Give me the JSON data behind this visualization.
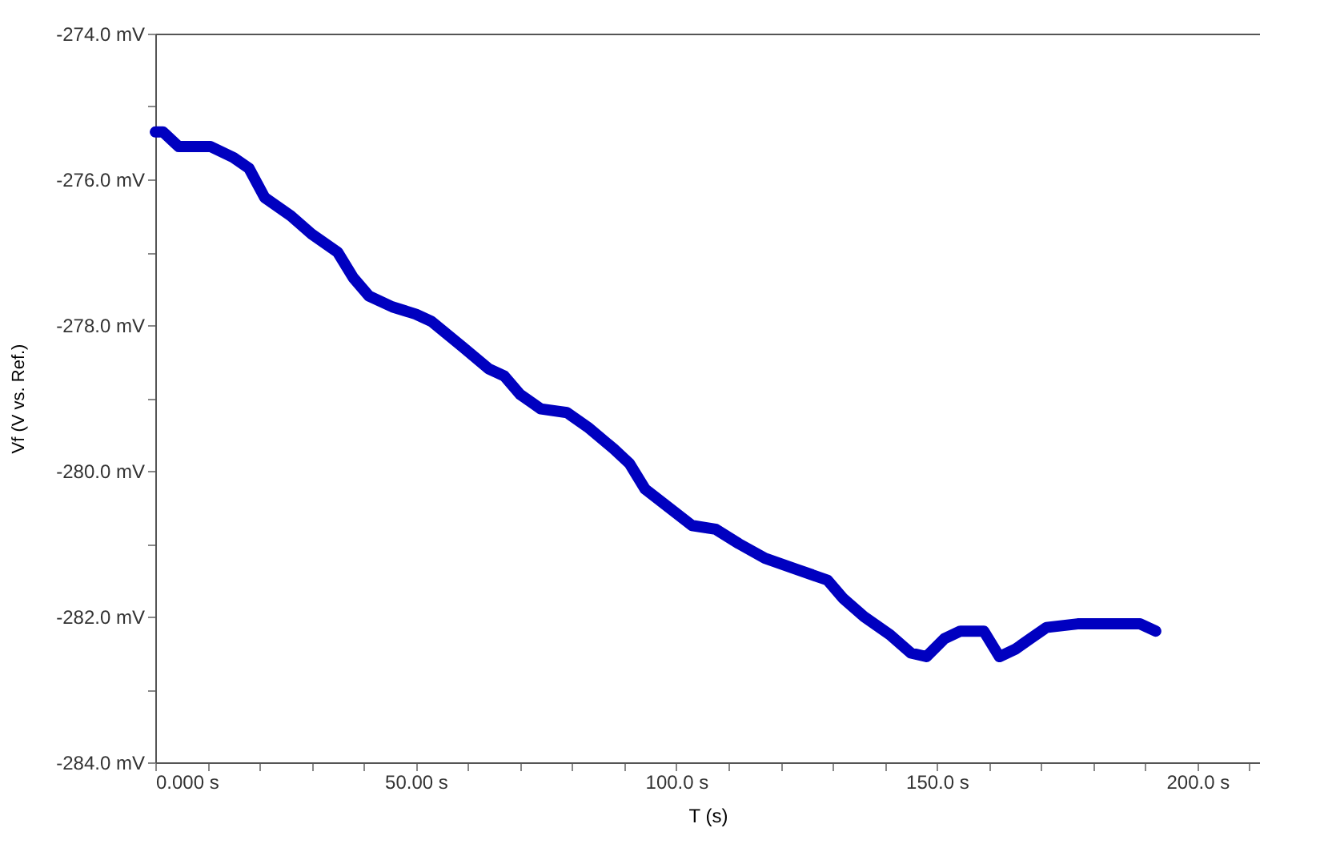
{
  "chart_data": {
    "type": "line",
    "xlabel": "T (s)",
    "ylabel": "Vf (V vs. Ref.)",
    "x": [
      0,
      1.5,
      4.5,
      7.6,
      10.6,
      15,
      18,
      21,
      26,
      30,
      35,
      38,
      41,
      45.5,
      50,
      53,
      59,
      64,
      67,
      70,
      74,
      79,
      83,
      88,
      91,
      94,
      98.5,
      103,
      107.5,
      112,
      117,
      123,
      129,
      132,
      136,
      141,
      145,
      148,
      151.5,
      154.5,
      159,
      162,
      165,
      168,
      171,
      177,
      183,
      189,
      192
    ],
    "series": [
      {
        "color": "#0000c0",
        "values": [
          -275.35,
          -275.35,
          -275.55,
          -275.55,
          -275.55,
          -275.7,
          -275.85,
          -276.25,
          -276.5,
          -276.75,
          -277.0,
          -277.35,
          -277.6,
          -277.75,
          -277.85,
          -277.95,
          -278.3,
          -278.6,
          -278.7,
          -278.95,
          -279.15,
          -279.2,
          -279.4,
          -279.7,
          -279.9,
          -280.25,
          -280.5,
          -280.75,
          -280.8,
          -281.0,
          -281.2,
          -281.35,
          -281.5,
          -281.75,
          -282.0,
          -282.25,
          -282.5,
          -282.55,
          -282.3,
          -282.2,
          -282.2,
          -282.55,
          -282.45,
          -282.3,
          -282.15,
          -282.1,
          -282.1,
          -282.1,
          -282.2
        ]
      }
    ],
    "xlim": [
      0,
      212
    ],
    "xticks": [
      {
        "value": 0,
        "label": "0.000 s"
      },
      {
        "value": 10,
        "label": null
      },
      {
        "value": 20,
        "label": null
      },
      {
        "value": 30,
        "label": null
      },
      {
        "value": 40,
        "label": null
      },
      {
        "value": 50,
        "label": "50.00 s"
      },
      {
        "value": 60,
        "label": null
      },
      {
        "value": 70,
        "label": null
      },
      {
        "value": 80,
        "label": null
      },
      {
        "value": 90,
        "label": null
      },
      {
        "value": 100,
        "label": "100.0 s"
      },
      {
        "value": 110,
        "label": null
      },
      {
        "value": 120,
        "label": null
      },
      {
        "value": 130,
        "label": null
      },
      {
        "value": 140,
        "label": null
      },
      {
        "value": 150,
        "label": "150.0 s"
      },
      {
        "value": 160,
        "label": null
      },
      {
        "value": 170,
        "label": null
      },
      {
        "value": 180,
        "label": null
      },
      {
        "value": 190,
        "label": null
      },
      {
        "value": 200,
        "label": "200.0 s"
      },
      {
        "value": 210,
        "label": null
      }
    ],
    "ylim": [
      -284,
      -274
    ],
    "yticks": [
      {
        "value": -284,
        "label": "-284.0 mV"
      },
      {
        "value": -283,
        "label": null
      },
      {
        "value": -282,
        "label": "-282.0 mV"
      },
      {
        "value": -281,
        "label": null
      },
      {
        "value": -280,
        "label": "-280.0 mV"
      },
      {
        "value": -279,
        "label": null
      },
      {
        "value": -278,
        "label": "-278.0 mV"
      },
      {
        "value": -277,
        "label": null
      },
      {
        "value": -276,
        "label": "-276.0 mV"
      },
      {
        "value": -275,
        "label": null
      },
      {
        "value": -274,
        "label": "-274.0 mV"
      }
    ],
    "grid": false,
    "legend": false,
    "line_style": "solid"
  }
}
